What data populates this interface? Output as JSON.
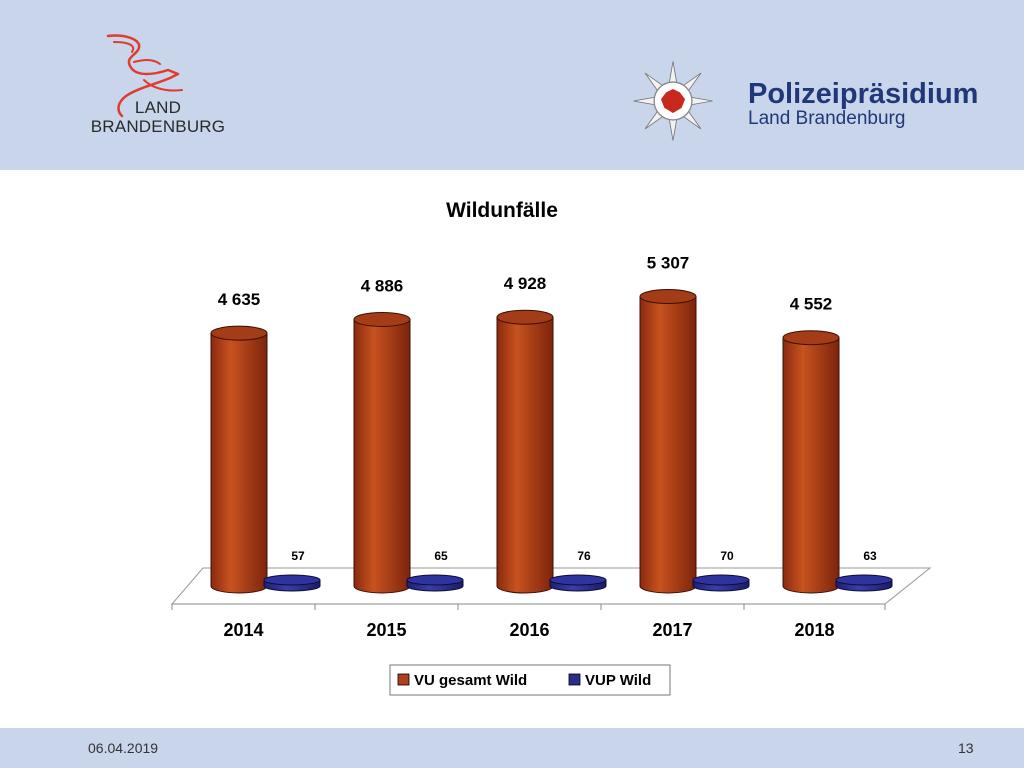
{
  "header": {
    "land_logo_line1": "LAND",
    "land_logo_line2": "BRANDENBURG",
    "police_title": "Polizeipräsidium",
    "police_subtitle": "Land Brandenburg"
  },
  "footer": {
    "date": "06.04.2019",
    "page": "13"
  },
  "colors": {
    "header_bg": "#c9d5ea",
    "series1": "#b0401c",
    "series2": "#2b2e8c",
    "title_text": "#20387a"
  },
  "icons": [
    "brandenburg-eagle-logo-icon",
    "police-star-emblem-icon"
  ],
  "chart_data": {
    "type": "bar",
    "title": "Wildunfälle",
    "categories": [
      "2014",
      "2015",
      "2016",
      "2017",
      "2018"
    ],
    "series": [
      {
        "name": "VU gesamt Wild",
        "values": [
          4635,
          4886,
          4928,
          5307,
          4552
        ],
        "labels": [
          "4 635",
          "4 886",
          "4 928",
          "5 307",
          "4 552"
        ]
      },
      {
        "name": "VUP Wild",
        "values": [
          57,
          65,
          76,
          70,
          63
        ],
        "labels": [
          "57",
          "65",
          "76",
          "70",
          "63"
        ]
      }
    ],
    "ylim": [
      0,
      5500
    ],
    "grid": false,
    "legend_position": "bottom"
  }
}
